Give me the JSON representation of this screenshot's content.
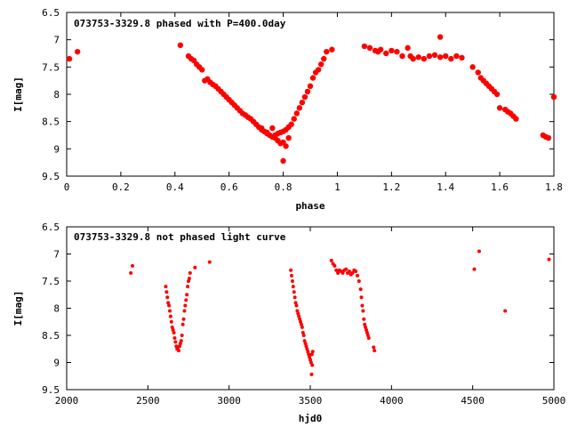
{
  "colors": {
    "points": "#ff0000",
    "axes": "#000000",
    "background": "#ffffff"
  },
  "chart_data": [
    {
      "type": "scatter",
      "title": "073753-3329.8 phased with P=400.0day",
      "xlabel": "phase",
      "ylabel": "I[mag]",
      "xlim": [
        0,
        1.8
      ],
      "ylim": [
        9.5,
        6.5
      ],
      "y_inverted": true,
      "x_ticks": [
        "0",
        "0.2",
        "0.4",
        "0.6",
        "0.8",
        "1",
        "1.2",
        "1.4",
        "1.6",
        "1.8"
      ],
      "y_ticks": [
        "6.5",
        "7",
        "7.5",
        "8",
        "8.5",
        "9",
        "9.5"
      ],
      "grid": false,
      "marker": "large-dot",
      "series": [
        {
          "x": [
            0.01,
            0.04,
            0.42,
            0.45,
            0.46,
            0.47,
            0.48,
            0.49,
            0.5,
            0.51,
            0.52,
            0.53,
            0.54,
            0.55,
            0.56,
            0.57,
            0.58,
            0.59,
            0.6,
            0.61,
            0.62,
            0.63,
            0.64,
            0.65,
            0.66,
            0.67,
            0.68,
            0.69,
            0.7,
            0.71,
            0.72,
            0.73,
            0.74,
            0.75,
            0.76,
            0.77,
            0.78,
            0.79,
            0.8,
            0.81,
            0.82,
            0.83,
            0.84,
            0.85,
            0.86,
            0.87,
            0.88,
            0.89,
            0.9,
            0.91,
            0.92,
            0.93,
            0.94,
            0.95,
            0.96,
            0.98,
            0.77,
            0.78,
            0.79,
            0.8,
            0.74,
            0.76,
            0.72,
            0.8,
            0.81,
            0.82,
            1.1,
            1.12,
            1.14,
            1.15,
            1.16,
            1.18,
            1.2,
            1.22,
            1.24,
            1.26,
            1.27,
            1.28,
            1.3,
            1.32,
            1.34,
            1.36,
            1.38,
            1.4,
            1.42,
            1.44,
            1.46,
            1.38,
            1.5,
            1.52,
            1.53,
            1.54,
            1.55,
            1.56,
            1.57,
            1.58,
            1.59,
            1.6,
            1.62,
            1.63,
            1.64,
            1.65,
            1.66,
            1.76,
            1.77,
            1.78,
            1.8
          ],
          "y": [
            7.35,
            7.22,
            7.1,
            7.3,
            7.35,
            7.38,
            7.45,
            7.5,
            7.55,
            7.75,
            7.72,
            7.78,
            7.82,
            7.85,
            7.9,
            7.95,
            8.0,
            8.05,
            8.1,
            8.15,
            8.2,
            8.25,
            8.3,
            8.35,
            8.38,
            8.42,
            8.45,
            8.5,
            8.55,
            8.6,
            8.62,
            8.68,
            8.72,
            8.75,
            8.78,
            8.75,
            8.72,
            8.7,
            8.68,
            8.65,
            8.6,
            8.55,
            8.45,
            8.35,
            8.25,
            8.15,
            8.05,
            7.95,
            7.85,
            7.7,
            7.6,
            7.55,
            7.45,
            7.35,
            7.22,
            7.18,
            8.8,
            8.85,
            8.9,
            8.88,
            8.7,
            8.62,
            8.65,
            9.22,
            8.95,
            8.8,
            7.12,
            7.15,
            7.2,
            7.22,
            7.18,
            7.25,
            7.2,
            7.22,
            7.3,
            7.15,
            7.3,
            7.35,
            7.32,
            7.35,
            7.3,
            7.28,
            7.32,
            7.3,
            7.35,
            7.3,
            7.33,
            6.95,
            7.5,
            7.6,
            7.7,
            7.75,
            7.8,
            7.85,
            7.9,
            7.95,
            8.0,
            8.25,
            8.28,
            8.32,
            8.35,
            8.4,
            8.45,
            8.75,
            8.78,
            8.8,
            8.05
          ]
        }
      ]
    },
    {
      "type": "scatter",
      "title": "073753-3329.8 not phased light curve",
      "xlabel": "hjd0",
      "ylabel": "I[mag]",
      "xlim": [
        2000,
        5000
      ],
      "ylim": [
        9.5,
        6.5
      ],
      "y_inverted": true,
      "x_ticks": [
        "2000",
        "2500",
        "3000",
        "3500",
        "4000",
        "4500",
        "5000"
      ],
      "y_ticks": [
        "6.5",
        "7",
        "7.5",
        "8",
        "8.5",
        "9",
        "9.5"
      ],
      "grid": false,
      "marker": "small-dot",
      "series": [
        {
          "x": [
            2395,
            2405,
            2610,
            2615,
            2620,
            2625,
            2630,
            2635,
            2640,
            2645,
            2650,
            2655,
            2660,
            2665,
            2670,
            2675,
            2680,
            2685,
            2690,
            2695,
            2700,
            2705,
            2710,
            2715,
            2720,
            2725,
            2730,
            2735,
            2740,
            2745,
            2750,
            2755,
            2760,
            2790,
            2880,
            3380,
            3385,
            3390,
            3395,
            3400,
            3405,
            3410,
            3415,
            3420,
            3425,
            3430,
            3435,
            3440,
            3445,
            3450,
            3455,
            3460,
            3465,
            3470,
            3475,
            3480,
            3485,
            3490,
            3495,
            3500,
            3505,
            3510,
            3515,
            3508,
            3512,
            3630,
            3640,
            3650,
            3660,
            3670,
            3680,
            3690,
            3700,
            3710,
            3720,
            3730,
            3740,
            3750,
            3760,
            3770,
            3780,
            3790,
            3800,
            3810,
            3815,
            3820,
            3825,
            3830,
            3835,
            3840,
            3845,
            3850,
            3855,
            3860,
            3890,
            3895,
            4510,
            4540,
            4700,
            4970
          ],
          "y": [
            7.35,
            7.22,
            7.6,
            7.7,
            7.8,
            7.9,
            7.95,
            8.05,
            8.15,
            8.25,
            8.35,
            8.4,
            8.45,
            8.55,
            8.62,
            8.7,
            8.75,
            8.72,
            8.78,
            8.7,
            8.65,
            8.6,
            8.5,
            8.3,
            8.2,
            8.05,
            7.95,
            7.85,
            7.75,
            7.6,
            7.5,
            7.45,
            7.35,
            7.25,
            7.15,
            7.3,
            7.4,
            7.5,
            7.6,
            7.7,
            7.8,
            7.9,
            7.95,
            8.05,
            8.1,
            8.15,
            8.2,
            8.25,
            8.3,
            8.35,
            8.45,
            8.5,
            8.6,
            8.65,
            8.7,
            8.75,
            8.8,
            8.85,
            8.9,
            8.95,
            9.0,
            8.85,
            8.8,
            9.22,
            9.05,
            7.12,
            7.18,
            7.22,
            7.3,
            7.35,
            7.3,
            7.32,
            7.35,
            7.3,
            7.28,
            7.35,
            7.32,
            7.38,
            7.35,
            7.3,
            7.32,
            7.4,
            7.5,
            7.65,
            7.8,
            7.95,
            8.05,
            8.2,
            8.3,
            8.35,
            8.4,
            8.45,
            8.5,
            8.55,
            8.72,
            8.78,
            7.28,
            6.95,
            8.05,
            7.1
          ]
        }
      ]
    }
  ]
}
